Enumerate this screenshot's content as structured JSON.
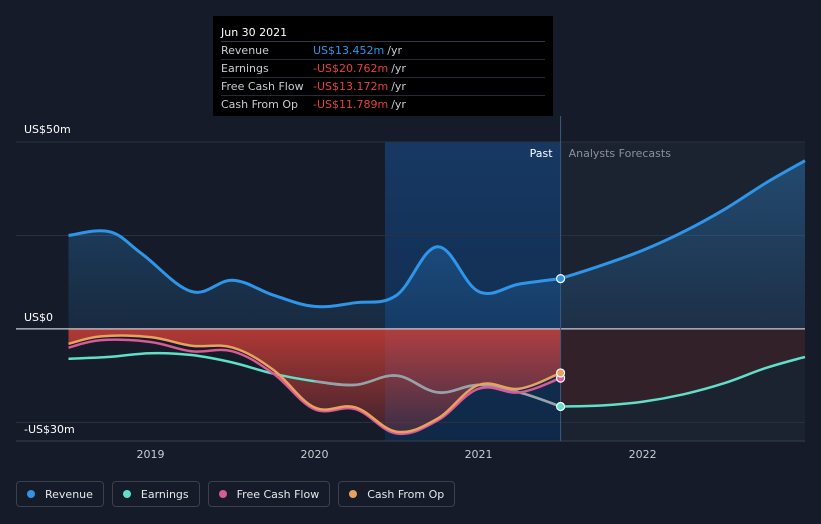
{
  "chart_data": {
    "type": "line",
    "y_top_label": "US$50m",
    "y_zero_label": "US$0",
    "y_bottom_label": "-US$30m",
    "x_ticks": [
      "2019",
      "2020",
      "2021",
      "2022"
    ],
    "ylim": [
      -30,
      50
    ],
    "past_label": "Past",
    "forecast_label": "Analysts Forecasts",
    "tooltip": {
      "date": "Jun 30 2021",
      "rows": [
        {
          "label": "Revenue",
          "value": "US$13.452m",
          "unit": "/yr",
          "sign": "pos"
        },
        {
          "label": "Earnings",
          "value": "-US$20.762m",
          "unit": "/yr",
          "sign": "neg"
        },
        {
          "label": "Free Cash Flow",
          "value": "-US$13.172m",
          "unit": "/yr",
          "sign": "neg"
        },
        {
          "label": "Cash From Op",
          "value": "-US$11.789m",
          "unit": "/yr",
          "sign": "neg"
        }
      ]
    },
    "series": [
      {
        "name": "Revenue",
        "color": "#2f95e8",
        "x": [
          2018.5,
          2018.75,
          2018.95,
          2019.25,
          2019.5,
          2019.75,
          2020.0,
          2020.25,
          2020.5,
          2020.75,
          2021.0,
          2021.25,
          2021.5
        ],
        "values": [
          25,
          26,
          20,
          10,
          13,
          9,
          6,
          7,
          9,
          22,
          10,
          12,
          13.452
        ],
        "forecast_x": [
          2021.5,
          2021.75,
          2022.0,
          2022.25,
          2022.5,
          2022.75,
          2022.99
        ],
        "forecast": [
          13.452,
          17,
          21,
          26,
          32,
          39,
          45
        ]
      },
      {
        "name": "Earnings",
        "color": "#5fe0c8",
        "x": [
          2018.5,
          2018.75,
          2019.0,
          2019.25,
          2019.5,
          2019.75,
          2020.0,
          2020.25,
          2020.5,
          2020.75,
          2021.0,
          2021.25,
          2021.5
        ],
        "values": [
          -8,
          -7.5,
          -6.5,
          -7,
          -9,
          -12,
          -14,
          -15,
          -12.5,
          -17,
          -15,
          -17,
          -20.762
        ],
        "forecast_x": [
          2021.5,
          2021.75,
          2022.0,
          2022.25,
          2022.5,
          2022.75,
          2022.99
        ],
        "forecast": [
          -20.762,
          -20.5,
          -19.5,
          -17.5,
          -14.5,
          -10.5,
          -7.5
        ]
      },
      {
        "name": "Free Cash Flow",
        "color": "#d85a96",
        "x": [
          2018.5,
          2018.7,
          2019.0,
          2019.25,
          2019.5,
          2019.75,
          2020.0,
          2020.25,
          2020.5,
          2020.75,
          2021.0,
          2021.25,
          2021.5
        ],
        "values": [
          -5,
          -3,
          -3.5,
          -6,
          -6,
          -12,
          -21.5,
          -21.5,
          -28,
          -24.5,
          -16,
          -17,
          -13.172
        ]
      },
      {
        "name": "Cash From Op",
        "color": "#e8a25e",
        "x": [
          2018.5,
          2018.7,
          2019.0,
          2019.25,
          2019.5,
          2019.75,
          2020.0,
          2020.25,
          2020.5,
          2020.75,
          2021.0,
          2021.25,
          2021.5
        ],
        "values": [
          -4,
          -2,
          -2.2,
          -4.5,
          -5,
          -11,
          -21,
          -21,
          -27.5,
          -24,
          -15,
          -16,
          -11.789
        ]
      }
    ]
  },
  "legend": {
    "items": [
      {
        "label": "Revenue",
        "color": "#2f95e8"
      },
      {
        "label": "Earnings",
        "color": "#5fe0c8"
      },
      {
        "label": "Free Cash Flow",
        "color": "#d85a96"
      },
      {
        "label": "Cash From Op",
        "color": "#e8a25e"
      }
    ]
  }
}
